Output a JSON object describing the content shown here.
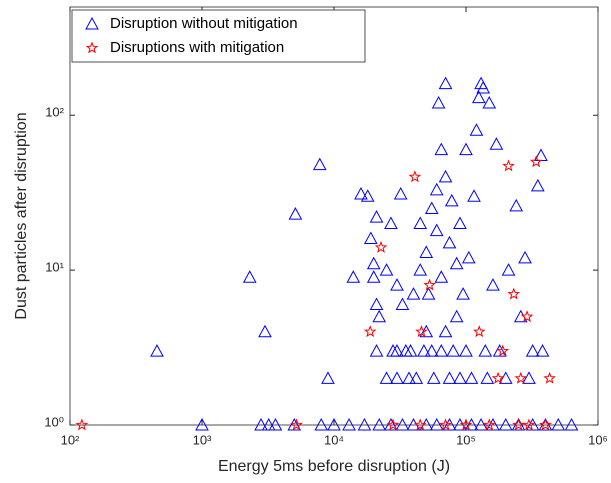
{
  "chart_data": {
    "type": "scatter",
    "x_label": "Energy 5ms before disruption (J)",
    "y_label": "Dust particles after disruption",
    "x_log": true,
    "y_log": true,
    "grid": false,
    "legend": "upper left",
    "xlim": [
      100,
      1000000
    ],
    "xticks": [
      {
        "value": 100,
        "label": "10²"
      },
      {
        "value": 1000,
        "label": "10³"
      },
      {
        "value": 10000,
        "label": "10⁴"
      },
      {
        "value": 100000,
        "label": "10⁵"
      },
      {
        "value": 1000000,
        "label": "10⁶"
      }
    ],
    "ylim": [
      1,
      500
    ],
    "yticks": [
      {
        "value": 1,
        "label": "10⁰"
      },
      {
        "value": 10,
        "label": "10¹"
      },
      {
        "value": 100,
        "label": "10²"
      }
    ],
    "series": [
      {
        "name": "Disruption without mitigation",
        "color": "#0000ff",
        "marker": "triangle",
        "x": [
          456,
          1000,
          2300,
          3000,
          5100,
          7800,
          9000,
          14000,
          16000,
          18000,
          19000,
          20000,
          20000,
          21000,
          21000,
          21000,
          22000,
          25000,
          25000,
          27000,
          28000,
          30000,
          30000,
          30000,
          32000,
          33000,
          35000,
          37000,
          38000,
          40000,
          42000,
          45000,
          45000,
          48000,
          50000,
          50000,
          52000,
          55000,
          55000,
          57000,
          60000,
          60000,
          62000,
          65000,
          65000,
          65000,
          70000,
          70000,
          70000,
          75000,
          75000,
          78000,
          80000,
          85000,
          85000,
          90000,
          90000,
          95000,
          100000,
          100000,
          105000,
          110000,
          115000,
          120000,
          125000,
          130000,
          135000,
          140000,
          145000,
          150000,
          160000,
          170000,
          180000,
          200000,
          210000,
          240000,
          260000,
          280000,
          300000,
          320000,
          350000,
          370000,
          380000,
          2800,
          3200,
          3600,
          5000,
          8000,
          10000,
          13000,
          17000,
          22000,
          27000,
          33000,
          40000,
          50000,
          60000,
          75000,
          90000,
          110000,
          130000,
          160000,
          200000,
          250000,
          320000,
          400000,
          500000,
          630000
        ],
        "values": [
          3,
          1,
          9,
          4,
          23,
          48,
          2,
          9,
          31,
          30,
          16,
          9,
          11,
          22,
          3,
          6,
          5,
          2,
          10,
          20,
          3,
          2,
          3,
          8,
          31,
          6,
          3,
          2,
          3,
          7,
          2,
          10,
          20,
          3,
          4,
          13,
          7,
          3,
          25,
          2,
          33,
          18,
          120,
          60,
          3,
          9,
          40,
          4,
          160,
          2,
          15,
          28,
          3,
          5,
          11,
          2,
          20,
          7,
          3,
          60,
          12,
          2,
          30,
          80,
          130,
          160,
          150,
          3,
          2,
          120,
          8,
          65,
          3,
          2,
          10,
          26,
          5,
          12,
          2,
          3,
          35,
          55,
          3,
          1,
          1,
          1,
          1,
          1,
          1,
          1,
          1,
          1,
          1,
          1,
          1,
          1,
          1,
          1,
          1,
          1,
          1,
          1,
          1,
          1,
          1,
          1,
          1,
          1
        ]
      },
      {
        "name": "Disruptions with mitigation",
        "color": "#ff0000",
        "marker": "star",
        "x": [
          123,
          5200,
          22700,
          18800,
          41000,
          46000,
          53000,
          126000,
          190000,
          175000,
          210000,
          230000,
          260000,
          290000,
          340000,
          430000,
          28000,
          45000,
          70000,
          100000,
          150000,
          250000,
          300000,
          400000
        ],
        "values": [
          1,
          1,
          14,
          4,
          40,
          4,
          8,
          4,
          3,
          2,
          47,
          7,
          2,
          5,
          50,
          2,
          1,
          1,
          1,
          1,
          1,
          1,
          1,
          1
        ]
      }
    ]
  }
}
